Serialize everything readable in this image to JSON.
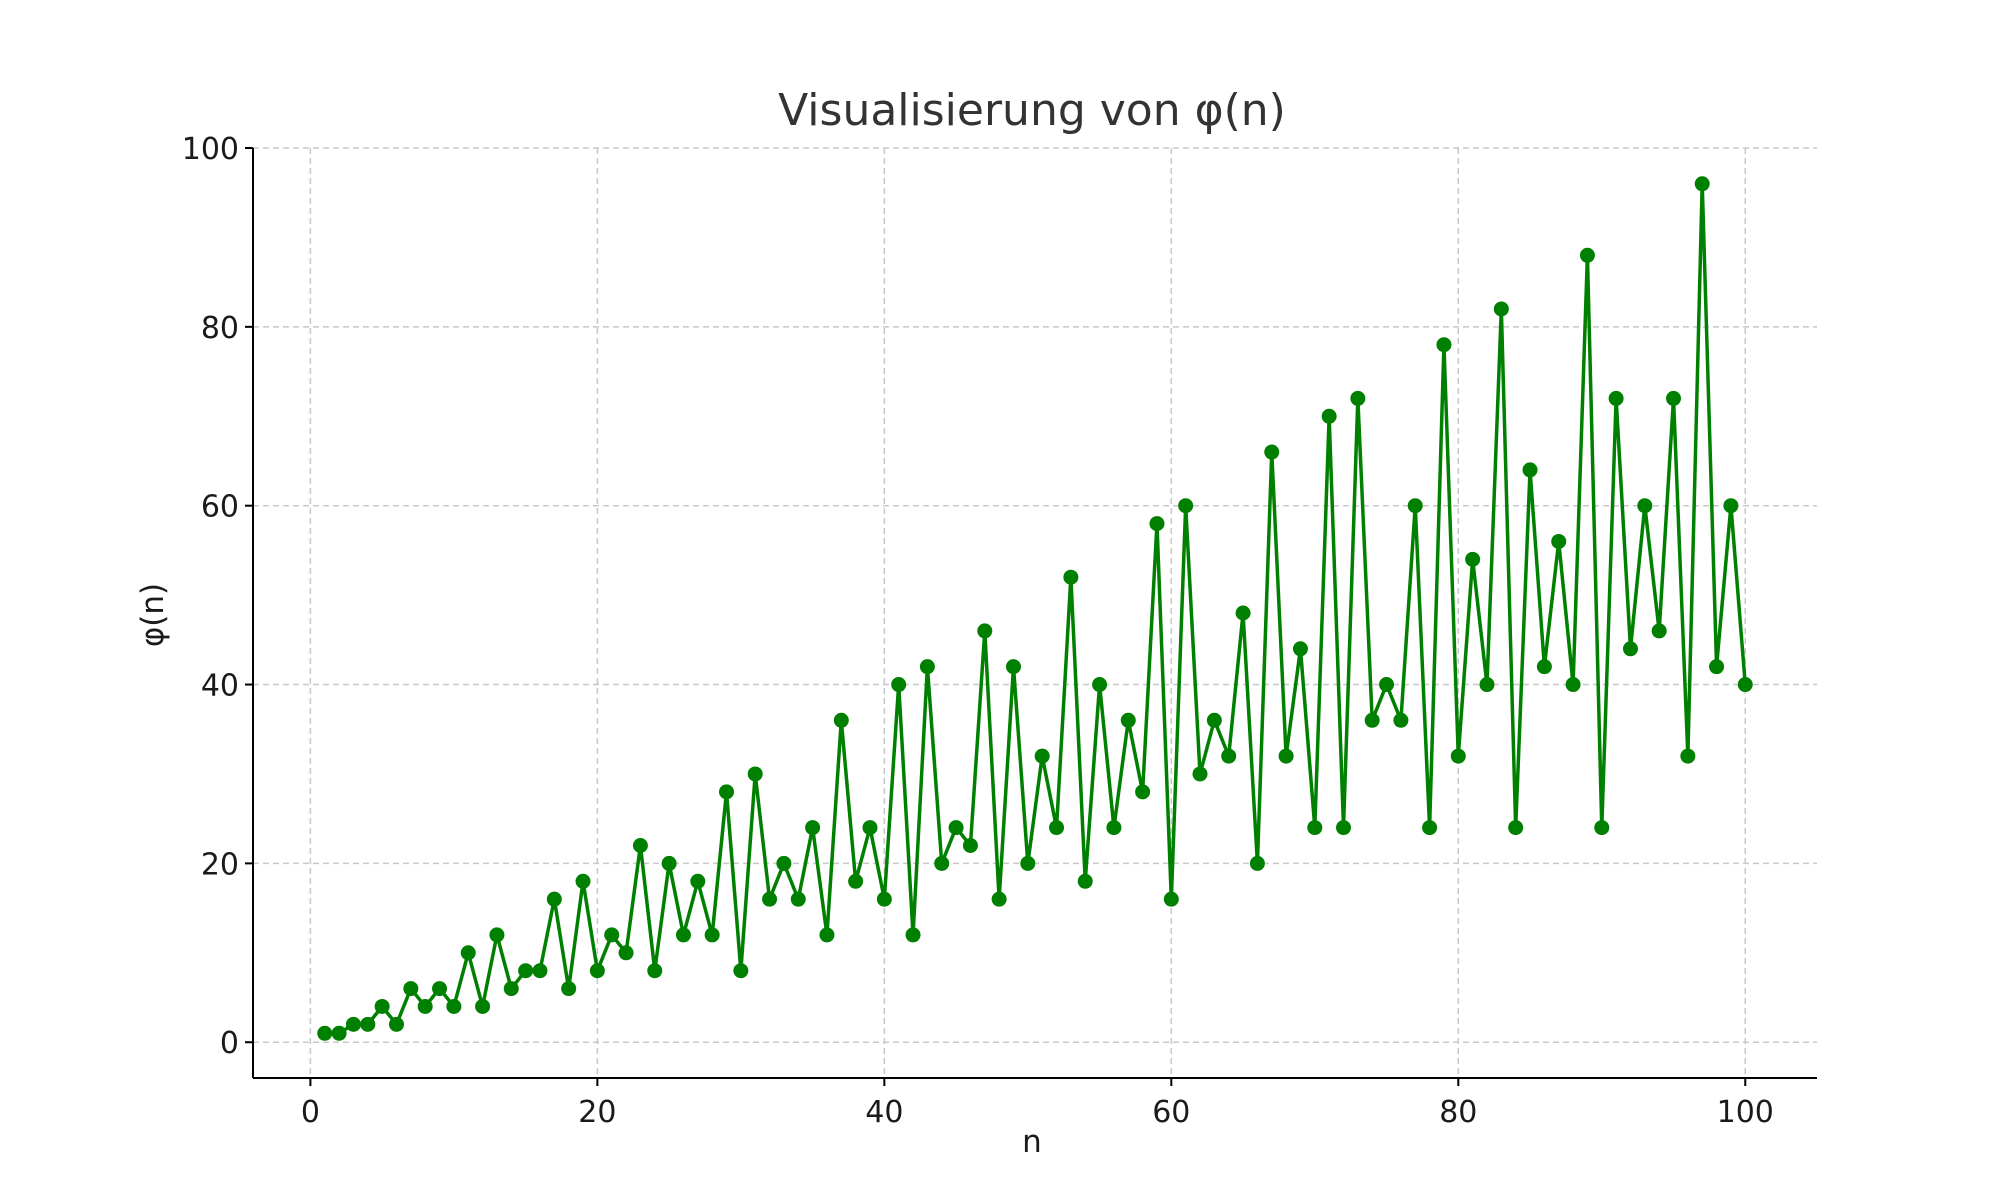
{
  "chart_data": {
    "type": "line",
    "title": "Visualisierung von φ(n)",
    "xlabel": "n",
    "ylabel": "φ(n)",
    "xlim": [
      -4,
      105
    ],
    "ylim": [
      -4,
      100
    ],
    "xticks": [
      0,
      20,
      40,
      60,
      80,
      100
    ],
    "yticks": [
      0,
      20,
      40,
      60,
      80,
      100
    ],
    "grid": true,
    "marker": "circle",
    "color": "#008000",
    "grid_color": "#c8c8c8",
    "x": [
      1,
      2,
      3,
      4,
      5,
      6,
      7,
      8,
      9,
      10,
      11,
      12,
      13,
      14,
      15,
      16,
      17,
      18,
      19,
      20,
      21,
      22,
      23,
      24,
      25,
      26,
      27,
      28,
      29,
      30,
      31,
      32,
      33,
      34,
      35,
      36,
      37,
      38,
      39,
      40,
      41,
      42,
      43,
      44,
      45,
      46,
      47,
      48,
      49,
      50,
      51,
      52,
      53,
      54,
      55,
      56,
      57,
      58,
      59,
      60,
      61,
      62,
      63,
      64,
      65,
      66,
      67,
      68,
      69,
      70,
      71,
      72,
      73,
      74,
      75,
      76,
      77,
      78,
      79,
      80,
      81,
      82,
      83,
      84,
      85,
      86,
      87,
      88,
      89,
      90,
      91,
      92,
      93,
      94,
      95,
      96,
      97,
      98,
      99,
      100
    ],
    "y": [
      1,
      1,
      2,
      2,
      4,
      2,
      6,
      4,
      6,
      4,
      10,
      4,
      12,
      6,
      8,
      8,
      16,
      6,
      18,
      8,
      12,
      10,
      22,
      8,
      20,
      12,
      18,
      12,
      28,
      8,
      30,
      16,
      20,
      16,
      24,
      12,
      36,
      18,
      24,
      16,
      40,
      12,
      42,
      20,
      24,
      22,
      46,
      16,
      42,
      20,
      32,
      24,
      52,
      18,
      40,
      24,
      36,
      28,
      58,
      16,
      60,
      30,
      36,
      32,
      48,
      20,
      66,
      32,
      44,
      24,
      70,
      24,
      72,
      36,
      40,
      36,
      60,
      24,
      78,
      32,
      54,
      40,
      82,
      24,
      64,
      42,
      56,
      40,
      88,
      24,
      72,
      44,
      60,
      46,
      72,
      32,
      96,
      42,
      60,
      40
    ]
  }
}
